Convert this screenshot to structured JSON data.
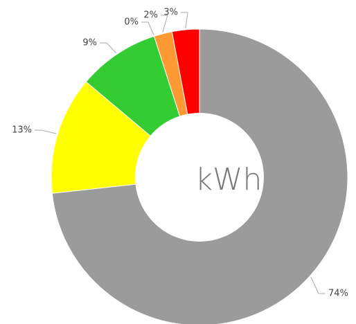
{
  "chart_data": {
    "type": "donut",
    "center_label": "kWh",
    "categories": [
      null,
      null,
      null,
      null,
      null,
      null
    ],
    "values": [
      74,
      13,
      9,
      0,
      2,
      3
    ],
    "value_labels": [
      "74%",
      "13%",
      "9%",
      "0%",
      "2%",
      "3%"
    ],
    "colors": [
      "#9b9b9b",
      "#ffff00",
      "#33cc33",
      "#99ee99",
      "#ff9933",
      "#ff0000"
    ]
  }
}
